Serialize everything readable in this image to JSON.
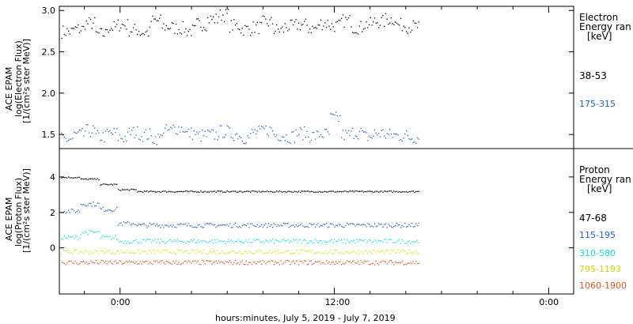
{
  "chart_data": [
    {
      "type": "scatter",
      "panel": "electron",
      "ylabel_lines": [
        "ACE EPAM",
        "log(Electron Flux)",
        "[1/(cm²s ster MeV)]"
      ],
      "legend_title": [
        "Electron",
        "Energy ran",
        "[keV]"
      ],
      "ylim": [
        1.33,
        3.05
      ],
      "yticks": [
        "1.5",
        "2.0",
        "2.5",
        "3.0"
      ],
      "ytick_values": [
        1.5,
        2.0,
        2.5,
        3.0
      ],
      "series": [
        {
          "name": "38-53",
          "color": "#000000",
          "mean": 2.8,
          "spread": 0.07,
          "values": [
            2.75,
            2.78,
            2.85,
            2.72,
            2.8,
            2.83,
            2.77,
            2.74,
            2.88,
            2.81,
            2.79,
            2.76,
            2.84,
            2.9,
            2.95,
            2.82,
            2.78,
            2.8,
            2.86,
            2.77,
            2.81,
            2.83,
            2.79,
            2.85,
            2.82,
            2.88,
            2.8,
            2.84,
            2.87,
            2.9,
            2.83,
            2.81
          ]
        },
        {
          "name": "175-315",
          "color": "#1f5fd0",
          "mean": 1.5,
          "spread": 0.06,
          "values": [
            1.45,
            1.5,
            1.55,
            1.48,
            1.52,
            1.47,
            1.53,
            1.5,
            1.46,
            1.55,
            1.58,
            1.52,
            1.49,
            1.5,
            1.54,
            1.51,
            1.47,
            1.53,
            1.56,
            1.5,
            1.48,
            1.52,
            1.49,
            1.51,
            1.7,
            1.5,
            1.53,
            1.48,
            1.52,
            1.5,
            1.49,
            1.47
          ]
        }
      ]
    },
    {
      "type": "scatter",
      "panel": "proton",
      "ylabel_lines": [
        "ACE EPAM",
        "log(Proton Flux)",
        "[1/(cm²s ster MeV)]"
      ],
      "legend_title": [
        "Proton",
        "Energy ran",
        "[keV]"
      ],
      "ylim": [
        -2.6,
        5.6
      ],
      "yticks": [
        "0",
        "2",
        "4"
      ],
      "ytick_values": [
        0,
        2,
        4
      ],
      "series": [
        {
          "name": "47-68",
          "color": "#000000",
          "values": [
            4.0,
            3.9,
            3.6,
            3.3,
            3.2,
            3.2,
            3.2,
            3.2,
            3.2,
            3.2,
            3.2,
            3.2,
            3.2,
            3.2,
            3.2,
            3.2,
            3.2,
            3.2,
            3.2
          ]
        },
        {
          "name": "115-195",
          "color": "#1f5fd0",
          "values": [
            2.1,
            2.5,
            2.2,
            1.4,
            1.3,
            1.3,
            1.3,
            1.3,
            1.3,
            1.3,
            1.3,
            1.3,
            1.3,
            1.3,
            1.3,
            1.3,
            1.3,
            1.3,
            1.3
          ]
        },
        {
          "name": "310-580",
          "color": "#1ed8e0",
          "values": [
            0.6,
            0.9,
            0.6,
            0.4,
            0.4,
            0.4,
            0.4,
            0.4,
            0.4,
            0.4,
            0.4,
            0.4,
            0.4,
            0.4,
            0.4,
            0.4,
            0.4,
            0.4,
            0.4
          ]
        },
        {
          "name": "795-1193",
          "color": "#d8e01e",
          "values": [
            -0.2,
            -0.2,
            -0.2,
            -0.2,
            -0.2,
            -0.2,
            -0.2,
            -0.2,
            -0.2,
            -0.2,
            -0.2,
            -0.2,
            -0.2,
            -0.2,
            -0.2,
            -0.2,
            -0.2,
            -0.2,
            -0.2
          ]
        },
        {
          "name": "1060-1900",
          "color": "#e0561e",
          "values": [
            -0.8,
            -0.8,
            -0.8,
            -0.8,
            -0.8,
            -0.8,
            -0.8,
            -0.8,
            -0.8,
            -0.8,
            -0.8,
            -0.8,
            -0.8,
            -0.8,
            -0.8,
            -0.8,
            -0.8,
            -0.8,
            -0.8
          ]
        }
      ]
    }
  ],
  "xaxis": {
    "label": "hours:minutes, July  5, 2019 - July  7, 2019",
    "ticks": [
      "0:00",
      "12:00",
      "0:00"
    ],
    "tick_hours": [
      24,
      36,
      48
    ],
    "range_hours": [
      20.6,
      49.4
    ],
    "data_end_hours": 40.7
  }
}
